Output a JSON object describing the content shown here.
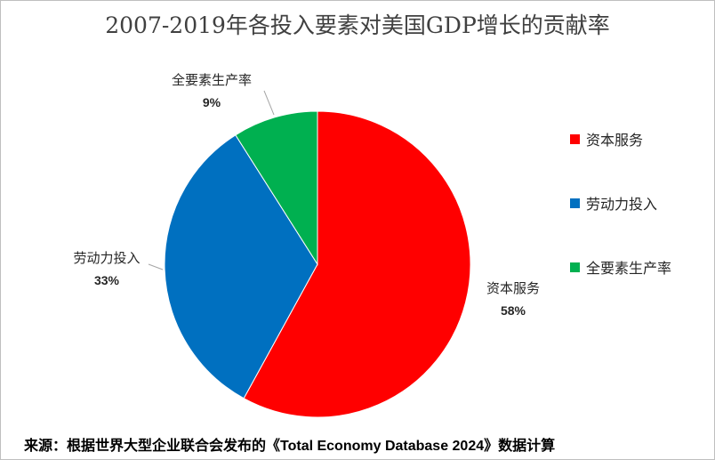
{
  "title": "2007-2019年各投入要素对美国GDP增长的贡献率",
  "source": "来源：根据世界大型企业联合会发布的《Total Economy Database 2024》数据计算",
  "chart_data": {
    "type": "pie",
    "title": "2007-2019年各投入要素对美国GDP增长的贡献率",
    "categories": [
      "资本服务",
      "劳动力投入",
      "全要素生产率"
    ],
    "values": [
      58,
      33,
      9
    ],
    "data_labels": [
      "58%",
      "33%",
      "9%"
    ],
    "colors": [
      "#ff0000",
      "#0070c0",
      "#00b050"
    ],
    "legend": [
      "资本服务",
      "劳动力投入",
      "全要素生产率"
    ],
    "legend_position": "right"
  }
}
